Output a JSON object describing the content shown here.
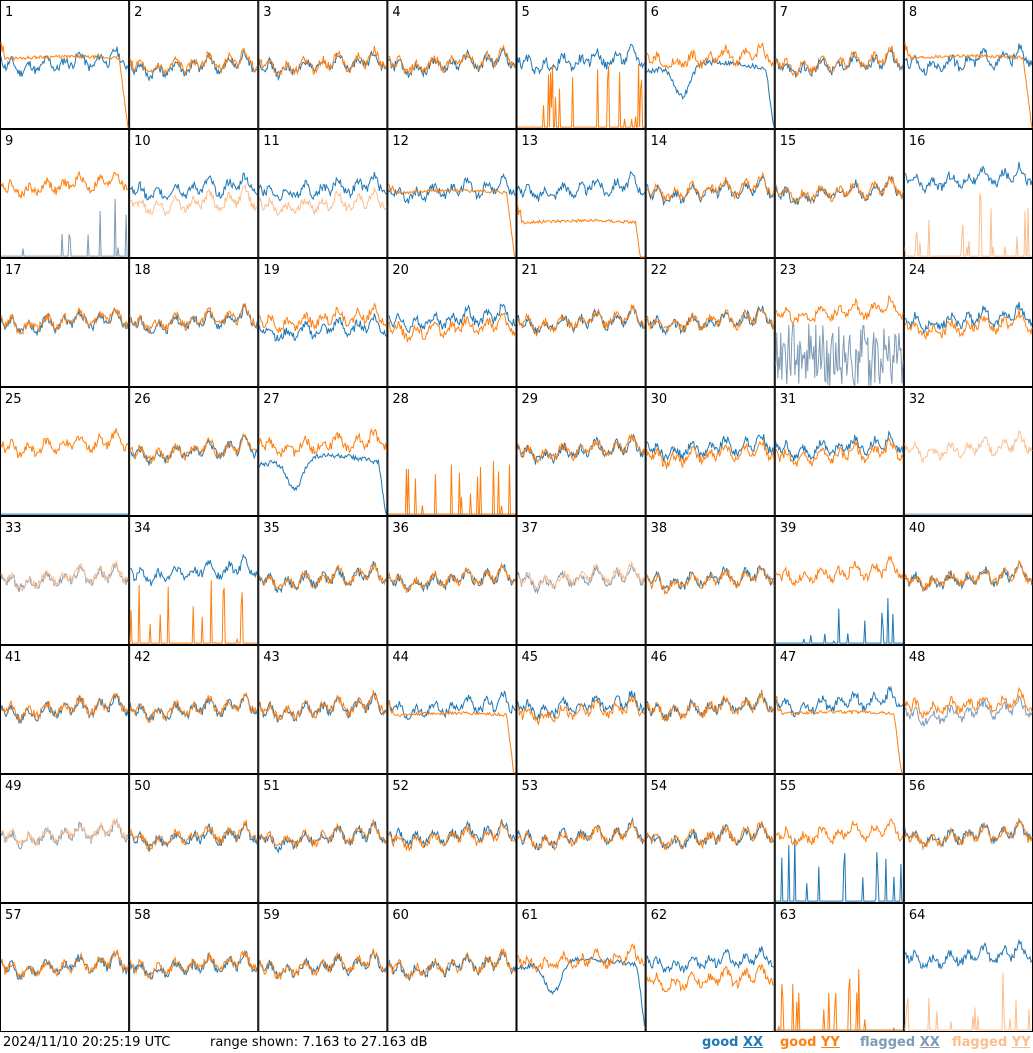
{
  "footer": {
    "timestamp": "2024/11/10 20:25:19 UTC",
    "range_text": "range shown: 7.163 to 27.163 dB"
  },
  "colors": {
    "good_xx": "#1f77b4",
    "good_yy": "#ff7f0e",
    "flagged_xx": "#7f9bb5",
    "flagged_yy": "#fbbf8f"
  },
  "chart_data": {
    "type": "line",
    "ylim": [
      7.163,
      27.163
    ],
    "legend_position": "bottom-right",
    "legend": [
      {
        "key": "good_xx",
        "prefix": "good",
        "marker": "XX"
      },
      {
        "key": "good_yy",
        "prefix": "good",
        "marker": "YY"
      },
      {
        "key": "flagged_xx",
        "prefix": "flagged",
        "marker": "XX"
      },
      {
        "key": "flagged_yy",
        "prefix": "flagged",
        "marker": "YY"
      }
    ],
    "panels": [
      {
        "label": "1",
        "xx": "good",
        "yy": "good",
        "xx_kind": "normal",
        "yy_kind": "rolloff",
        "xx_level": 17.5,
        "yy_level": 18.0
      },
      {
        "label": "2",
        "xx": "good",
        "yy": "good",
        "xx_kind": "normal",
        "yy_kind": "normal",
        "xx_level": 17.0,
        "yy_level": 17.3
      },
      {
        "label": "3",
        "xx": "good",
        "yy": "good",
        "xx_kind": "normal",
        "yy_kind": "normal",
        "xx_level": 17.2,
        "yy_level": 17.4
      },
      {
        "label": "4",
        "xx": "good",
        "yy": "good",
        "xx_kind": "normal",
        "yy_kind": "normal",
        "xx_level": 17.4,
        "yy_level": 17.6
      },
      {
        "label": "5",
        "xx": "good",
        "yy": "good",
        "xx_kind": "normal",
        "yy_kind": "spikes",
        "xx_level": 17.8,
        "yy_level": 7.3
      },
      {
        "label": "6",
        "xx": "good",
        "yy": "good",
        "xx_kind": "dip",
        "yy_kind": "normal",
        "xx_level": 16.0,
        "yy_level": 18.2
      },
      {
        "label": "7",
        "xx": "good",
        "yy": "good",
        "xx_kind": "normal",
        "yy_kind": "normal",
        "xx_level": 17.2,
        "yy_level": 17.6
      },
      {
        "label": "8",
        "xx": "good",
        "yy": "good",
        "xx_kind": "normal",
        "yy_kind": "rolloff",
        "xx_level": 17.8,
        "yy_level": 18.1
      },
      {
        "label": "9",
        "xx": "flagged",
        "yy": "good",
        "xx_kind": "spikes",
        "yy_kind": "normal",
        "xx_level": 7.3,
        "yy_level": 18.6
      },
      {
        "label": "10",
        "xx": "good",
        "yy": "flagged",
        "xx_kind": "normal",
        "yy_kind": "normal",
        "xx_level": 18.0,
        "yy_level": 15.8
      },
      {
        "label": "11",
        "xx": "good",
        "yy": "flagged",
        "xx_kind": "normal",
        "yy_kind": "normal",
        "xx_level": 18.0,
        "yy_level": 15.6
      },
      {
        "label": "12",
        "xx": "good",
        "yy": "good",
        "xx_kind": "normal",
        "yy_kind": "rolloff",
        "xx_level": 17.8,
        "yy_level": 17.2
      },
      {
        "label": "13",
        "xx": "good",
        "yy": "good",
        "xx_kind": "normal",
        "yy_kind": "rolloff",
        "xx_level": 18.0,
        "yy_level": 12.5
      },
      {
        "label": "14",
        "xx": "good",
        "yy": "good",
        "xx_kind": "normal",
        "yy_kind": "normal",
        "xx_level": 17.6,
        "yy_level": 17.9
      },
      {
        "label": "15",
        "xx": "good",
        "yy": "good",
        "xx_kind": "normal",
        "yy_kind": "normal",
        "xx_level": 17.4,
        "yy_level": 17.6
      },
      {
        "label": "16",
        "xx": "good",
        "yy": "flagged",
        "xx_kind": "normal",
        "yy_kind": "spikes",
        "xx_level": 19.5,
        "yy_level": 7.3
      },
      {
        "label": "17",
        "xx": "good",
        "yy": "good",
        "xx_kind": "normal",
        "yy_kind": "normal",
        "xx_level": 17.3,
        "yy_level": 17.5
      },
      {
        "label": "18",
        "xx": "good",
        "yy": "good",
        "xx_kind": "normal",
        "yy_kind": "normal",
        "xx_level": 17.4,
        "yy_level": 17.6
      },
      {
        "label": "19",
        "xx": "good",
        "yy": "good",
        "xx_kind": "normal",
        "yy_kind": "normal",
        "xx_level": 16.2,
        "yy_level": 17.8
      },
      {
        "label": "20",
        "xx": "good",
        "yy": "good",
        "xx_kind": "normal",
        "yy_kind": "normal",
        "xx_level": 17.8,
        "yy_level": 16.4
      },
      {
        "label": "21",
        "xx": "good",
        "yy": "good",
        "xx_kind": "normal",
        "yy_kind": "normal",
        "xx_level": 17.4,
        "yy_level": 17.5
      },
      {
        "label": "22",
        "xx": "good",
        "yy": "good",
        "xx_kind": "normal",
        "yy_kind": "normal",
        "xx_level": 17.4,
        "yy_level": 17.5
      },
      {
        "label": "23",
        "xx": "flagged",
        "yy": "good",
        "xx_kind": "noisy",
        "yy_kind": "normal",
        "xx_level": 12.0,
        "yy_level": 19.0
      },
      {
        "label": "24",
        "xx": "good",
        "yy": "good",
        "xx_kind": "normal",
        "yy_kind": "normal",
        "xx_level": 17.8,
        "yy_level": 16.6
      },
      {
        "label": "25",
        "xx": "good",
        "yy": "good",
        "xx_kind": "flat_low",
        "yy_kind": "normal",
        "xx_level": 7.3,
        "yy_level": 18.3
      },
      {
        "label": "26",
        "xx": "good",
        "yy": "good",
        "xx_kind": "normal",
        "yy_kind": "normal",
        "xx_level": 17.3,
        "yy_level": 17.4
      },
      {
        "label": "27",
        "xx": "good",
        "yy": "good",
        "xx_kind": "dip",
        "yy_kind": "normal",
        "xx_level": 15.0,
        "yy_level": 18.4
      },
      {
        "label": "28",
        "xx": "good",
        "yy": "good",
        "xx_kind": "flat_low",
        "yy_kind": "spikes",
        "xx_level": 7.3,
        "yy_level": 7.3
      },
      {
        "label": "29",
        "xx": "good",
        "yy": "good",
        "xx_kind": "normal",
        "yy_kind": "normal",
        "xx_level": 17.4,
        "yy_level": 17.5
      },
      {
        "label": "30",
        "xx": "good",
        "yy": "good",
        "xx_kind": "normal",
        "yy_kind": "normal",
        "xx_level": 17.8,
        "yy_level": 16.8
      },
      {
        "label": "31",
        "xx": "good",
        "yy": "good",
        "xx_kind": "normal",
        "yy_kind": "normal",
        "xx_level": 17.9,
        "yy_level": 16.8
      },
      {
        "label": "32",
        "xx": "flagged",
        "yy": "flagged",
        "xx_kind": "flat_low",
        "yy_kind": "normal",
        "xx_level": 7.3,
        "yy_level": 17.8
      },
      {
        "label": "33",
        "xx": "flagged",
        "yy": "flagged",
        "xx_kind": "normal",
        "yy_kind": "normal",
        "xx_level": 17.6,
        "yy_level": 17.8
      },
      {
        "label": "34",
        "xx": "good",
        "yy": "good",
        "xx_kind": "normal",
        "yy_kind": "spikes",
        "xx_level": 18.6,
        "yy_level": 7.3
      },
      {
        "label": "35",
        "xx": "good",
        "yy": "good",
        "xx_kind": "normal",
        "yy_kind": "normal",
        "xx_level": 17.5,
        "yy_level": 17.6
      },
      {
        "label": "36",
        "xx": "good",
        "yy": "good",
        "xx_kind": "normal",
        "yy_kind": "normal",
        "xx_level": 17.4,
        "yy_level": 17.5
      },
      {
        "label": "37",
        "xx": "flagged",
        "yy": "flagged",
        "xx_kind": "normal",
        "yy_kind": "normal",
        "xx_level": 17.6,
        "yy_level": 17.8
      },
      {
        "label": "38",
        "xx": "good",
        "yy": "good",
        "xx_kind": "normal",
        "yy_kind": "normal",
        "xx_level": 17.6,
        "yy_level": 17.4
      },
      {
        "label": "39",
        "xx": "good",
        "yy": "good",
        "xx_kind": "spikes",
        "yy_kind": "normal",
        "xx_level": 7.3,
        "yy_level": 18.4
      },
      {
        "label": "40",
        "xx": "good",
        "yy": "good",
        "xx_kind": "normal",
        "yy_kind": "normal",
        "xx_level": 17.6,
        "yy_level": 17.7
      },
      {
        "label": "41",
        "xx": "good",
        "yy": "good",
        "xx_kind": "normal",
        "yy_kind": "normal",
        "xx_level": 17.3,
        "yy_level": 17.5
      },
      {
        "label": "42",
        "xx": "good",
        "yy": "good",
        "xx_kind": "normal",
        "yy_kind": "normal",
        "xx_level": 17.3,
        "yy_level": 17.4
      },
      {
        "label": "43",
        "xx": "good",
        "yy": "good",
        "xx_kind": "normal",
        "yy_kind": "normal",
        "xx_level": 17.4,
        "yy_level": 17.5
      },
      {
        "label": "44",
        "xx": "good",
        "yy": "good",
        "xx_kind": "normal",
        "yy_kind": "rolloff",
        "xx_level": 17.6,
        "yy_level": 16.2
      },
      {
        "label": "45",
        "xx": "good",
        "yy": "good",
        "xx_kind": "normal",
        "yy_kind": "normal",
        "xx_level": 17.8,
        "yy_level": 17.0
      },
      {
        "label": "46",
        "xx": "good",
        "yy": "good",
        "xx_kind": "normal",
        "yy_kind": "normal",
        "xx_level": 17.6,
        "yy_level": 17.5
      },
      {
        "label": "47",
        "xx": "good",
        "yy": "good",
        "xx_kind": "normal",
        "yy_kind": "rolloff",
        "xx_level": 18.2,
        "yy_level": 16.4
      },
      {
        "label": "48",
        "xx": "flagged",
        "yy": "good",
        "xx_kind": "normal",
        "yy_kind": "normal",
        "xx_level": 16.8,
        "yy_level": 18.0
      },
      {
        "label": "49",
        "xx": "flagged",
        "yy": "flagged",
        "xx_kind": "normal",
        "yy_kind": "normal",
        "xx_level": 17.8,
        "yy_level": 18.0
      },
      {
        "label": "50",
        "xx": "good",
        "yy": "good",
        "xx_kind": "normal",
        "yy_kind": "normal",
        "xx_level": 17.4,
        "yy_level": 17.6
      },
      {
        "label": "51",
        "xx": "good",
        "yy": "good",
        "xx_kind": "normal",
        "yy_kind": "normal",
        "xx_level": 17.4,
        "yy_level": 17.5
      },
      {
        "label": "52",
        "xx": "good",
        "yy": "good",
        "xx_kind": "normal",
        "yy_kind": "normal",
        "xx_level": 17.8,
        "yy_level": 17.4
      },
      {
        "label": "53",
        "xx": "good",
        "yy": "good",
        "xx_kind": "normal",
        "yy_kind": "normal",
        "xx_level": 17.6,
        "yy_level": 17.4
      },
      {
        "label": "54",
        "xx": "good",
        "yy": "good",
        "xx_kind": "normal",
        "yy_kind": "normal",
        "xx_level": 17.4,
        "yy_level": 17.5
      },
      {
        "label": "55",
        "xx": "good",
        "yy": "good",
        "xx_kind": "spikes",
        "yy_kind": "normal",
        "xx_level": 7.3,
        "yy_level": 18.0
      },
      {
        "label": "56",
        "xx": "good",
        "yy": "good",
        "xx_kind": "normal",
        "yy_kind": "normal",
        "xx_level": 17.8,
        "yy_level": 17.6
      },
      {
        "label": "57",
        "xx": "good",
        "yy": "good",
        "xx_kind": "normal",
        "yy_kind": "normal",
        "xx_level": 17.4,
        "yy_level": 17.5
      },
      {
        "label": "58",
        "xx": "good",
        "yy": "good",
        "xx_kind": "normal",
        "yy_kind": "normal",
        "xx_level": 17.4,
        "yy_level": 17.6
      },
      {
        "label": "59",
        "xx": "good",
        "yy": "good",
        "xx_kind": "normal",
        "yy_kind": "normal",
        "xx_level": 17.4,
        "yy_level": 17.5
      },
      {
        "label": "60",
        "xx": "good",
        "yy": "good",
        "xx_kind": "normal",
        "yy_kind": "normal",
        "xx_level": 17.4,
        "yy_level": 17.5
      },
      {
        "label": "61",
        "xx": "good",
        "yy": "good",
        "xx_kind": "dip",
        "yy_kind": "normal",
        "xx_level": 17.0,
        "yy_level": 18.4
      },
      {
        "label": "62",
        "xx": "good",
        "yy": "good",
        "xx_kind": "normal",
        "yy_kind": "normal",
        "xx_level": 18.2,
        "yy_level": 15.4
      },
      {
        "label": "63",
        "xx": "good",
        "yy": "good",
        "xx_kind": "flat_low",
        "yy_kind": "spikes",
        "xx_level": 7.3,
        "yy_level": 7.3
      },
      {
        "label": "64",
        "xx": "good",
        "yy": "flagged",
        "xx_kind": "normal",
        "yy_kind": "spikes",
        "xx_level": 19.0,
        "yy_level": 7.3
      }
    ]
  }
}
